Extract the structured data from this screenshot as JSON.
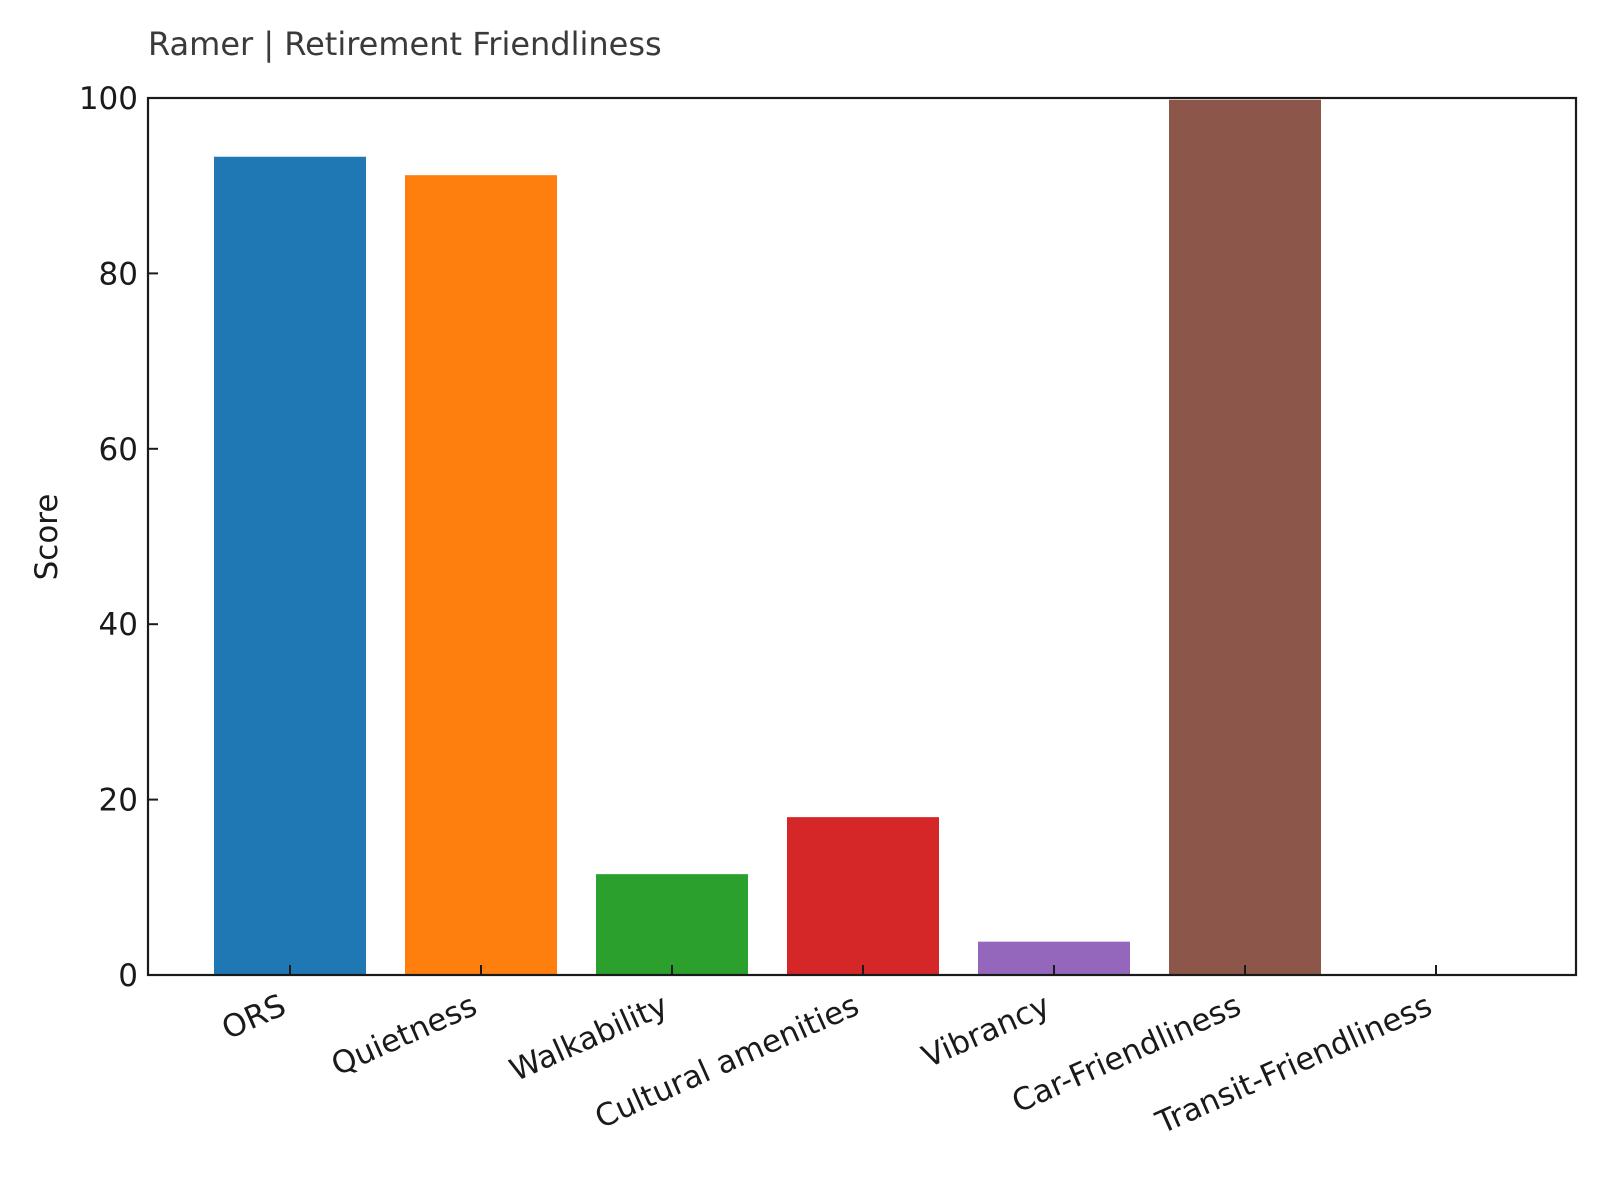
{
  "chart_data": {
    "type": "bar",
    "title": "Ramer | Retirement Friendliness",
    "xlabel": "",
    "ylabel": "Score",
    "ylim": [
      0,
      100
    ],
    "yticks": [
      0,
      20,
      40,
      60,
      80,
      100
    ],
    "grid": false,
    "categories": [
      "ORS",
      "Quietness",
      "Walkability",
      "Cultural amenities",
      "Vibrancy",
      "Car-Friendliness",
      "Transit-Friendliness"
    ],
    "values": [
      93.3,
      91.2,
      11.5,
      18.0,
      3.8,
      99.8,
      0
    ],
    "colors": [
      "#1f77b4",
      "#ff7f0e",
      "#2ca02c",
      "#d62728",
      "#9467bd",
      "#8c564b",
      "#e377c2"
    ]
  }
}
